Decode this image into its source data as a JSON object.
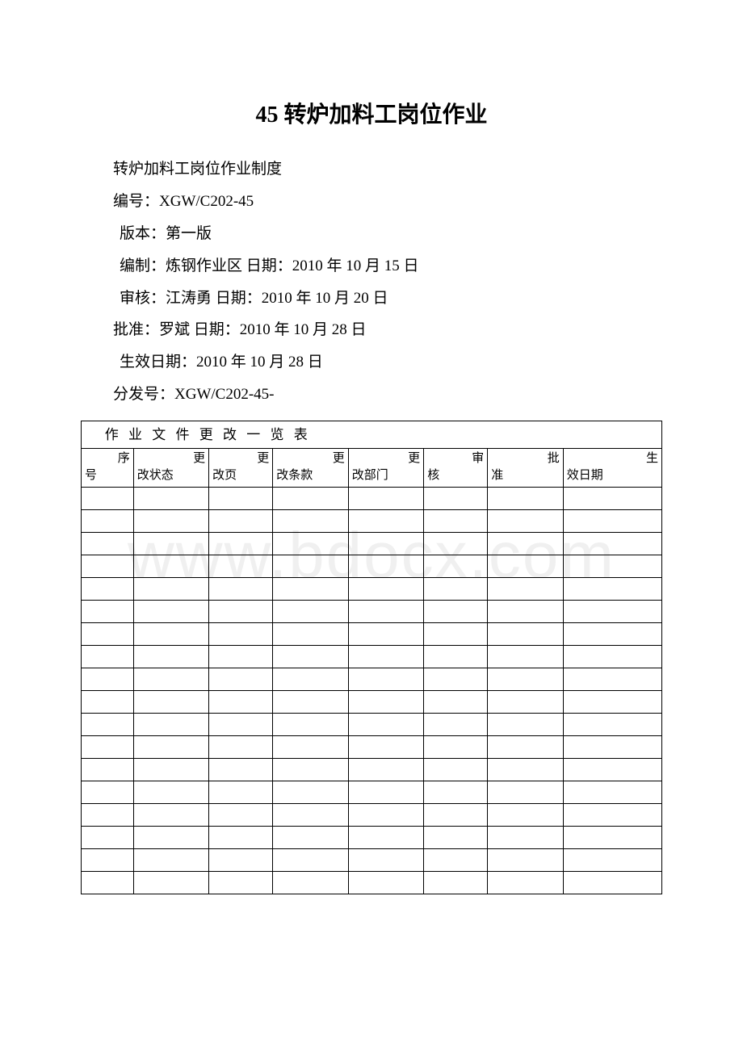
{
  "title": "45 转炉加料工岗位作业",
  "meta": {
    "line1": "转炉加料工岗位作业制度",
    "line2": "编号：XGW/C202-45",
    "line3": "版本：第一版",
    "line4": "编制：炼钢作业区   日期：2010 年 10 月 15 日",
    "line5": "审核：江涛勇 日期：2010 年 10 月 20 日",
    "line6": "批准：罗斌  日期：2010 年 10 月 28 日",
    "line7": "生效日期：2010 年 10 月 28 日",
    "line8": "分发号：XGW/C202-45-"
  },
  "table": {
    "title": "作 业 文 件 更 改 一 览 表",
    "columns": [
      {
        "top": "序",
        "bottom": "号",
        "width": "9%"
      },
      {
        "top": "更",
        "bottom": "改状态",
        "width": "13%"
      },
      {
        "top": "更",
        "bottom": "改页",
        "width": "11%"
      },
      {
        "top": "更",
        "bottom": "改条款",
        "width": "13%"
      },
      {
        "top": "更",
        "bottom": "改部门",
        "width": "13%"
      },
      {
        "top": "审",
        "bottom": "核",
        "width": "11%"
      },
      {
        "top": "批",
        "bottom": "准",
        "width": "13%"
      },
      {
        "top": "生",
        "bottom": "效日期",
        "width": "17%"
      }
    ],
    "empty_rows": 18,
    "border_color": "#000000",
    "background_color": "#ffffff",
    "font_size": 16
  },
  "watermark": "www.bdocx.com"
}
